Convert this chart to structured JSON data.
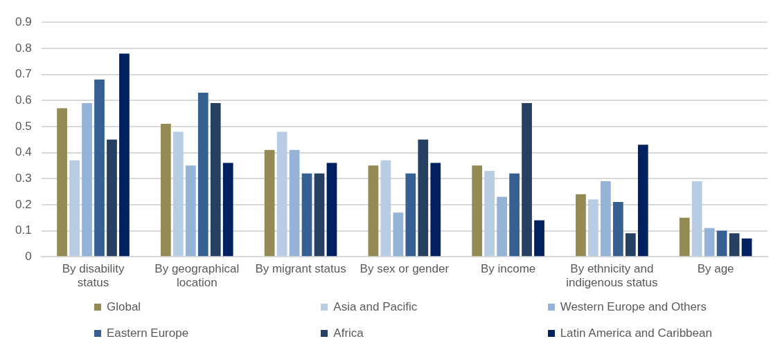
{
  "chart_data": {
    "type": "bar",
    "categories": [
      "By disability status",
      "By geographical location",
      "By migrant status",
      "By sex or gender",
      "By income",
      "By ethnicity and indigenous status",
      "By age"
    ],
    "series": [
      {
        "name": "Global",
        "color": "#948a54",
        "values": [
          0.57,
          0.51,
          0.41,
          0.35,
          0.35,
          0.24,
          0.15
        ]
      },
      {
        "name": "Asia and Pacific",
        "color": "#b8cce4",
        "values": [
          0.37,
          0.48,
          0.48,
          0.37,
          0.33,
          0.22,
          0.29
        ]
      },
      {
        "name": "Western Europe and Others",
        "color": "#95b3d7",
        "values": [
          0.59,
          0.35,
          0.41,
          0.17,
          0.23,
          0.29,
          0.11
        ]
      },
      {
        "name": "Eastern Europe",
        "color": "#366092",
        "values": [
          0.68,
          0.63,
          0.32,
          0.32,
          0.32,
          0.21,
          0.1
        ]
      },
      {
        "name": "Africa",
        "color": "#254061",
        "values": [
          0.45,
          0.59,
          0.32,
          0.45,
          0.59,
          0.09,
          0.09
        ]
      },
      {
        "name": "Latin America and Caribbean",
        "color": "#002060",
        "values": [
          0.78,
          0.36,
          0.36,
          0.36,
          0.14,
          0.43,
          0.07
        ]
      }
    ],
    "ylim": [
      0,
      0.9
    ],
    "yticks": [
      0,
      0.1,
      0.2,
      0.3,
      0.4,
      0.5,
      0.6,
      0.7,
      0.8,
      0.9
    ],
    "grid": "y",
    "legend": "bottom"
  }
}
